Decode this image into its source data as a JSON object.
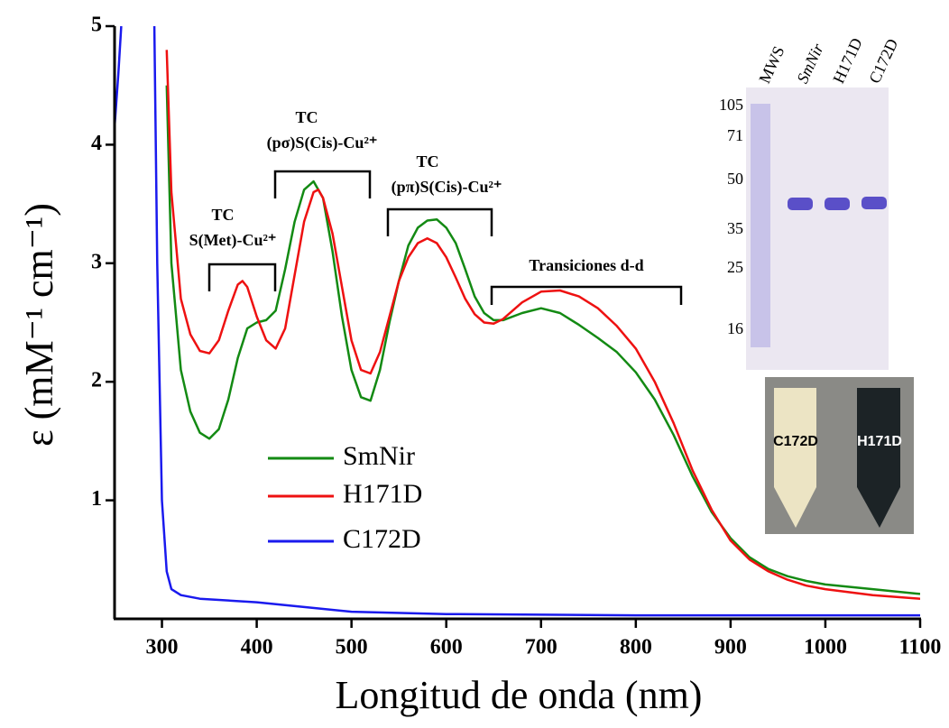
{
  "chart_data": {
    "type": "line",
    "xlabel": "Longitud de onda (nm)",
    "ylabel": "ε (mM⁻¹ cm⁻¹)",
    "xlim": [
      250,
      1100
    ],
    "ylim": [
      0,
      5
    ],
    "xticks": [
      300,
      400,
      500,
      600,
      700,
      800,
      900,
      1000,
      1100
    ],
    "yticks": [
      1,
      2,
      3,
      4,
      5
    ],
    "series": [
      {
        "name": "SmNir",
        "color": "#138a13",
        "x": [
          305,
          310,
          320,
          330,
          340,
          350,
          360,
          370,
          380,
          390,
          400,
          410,
          420,
          430,
          440,
          450,
          460,
          470,
          480,
          490,
          500,
          510,
          520,
          530,
          540,
          550,
          560,
          570,
          580,
          590,
          600,
          610,
          620,
          630,
          640,
          650,
          660,
          680,
          700,
          720,
          740,
          760,
          780,
          800,
          820,
          840,
          860,
          880,
          900,
          920,
          940,
          960,
          980,
          1000,
          1050,
          1100
        ],
        "values": [
          4.5,
          3.0,
          2.1,
          1.75,
          1.57,
          1.52,
          1.6,
          1.85,
          2.2,
          2.45,
          2.5,
          2.52,
          2.6,
          2.95,
          3.35,
          3.62,
          3.69,
          3.55,
          3.1,
          2.55,
          2.1,
          1.87,
          1.84,
          2.1,
          2.5,
          2.85,
          3.15,
          3.3,
          3.36,
          3.37,
          3.3,
          3.17,
          2.95,
          2.72,
          2.58,
          2.52,
          2.52,
          2.58,
          2.62,
          2.58,
          2.48,
          2.37,
          2.25,
          2.08,
          1.85,
          1.55,
          1.2,
          0.9,
          0.68,
          0.52,
          0.42,
          0.36,
          0.32,
          0.29,
          0.25,
          0.21
        ]
      },
      {
        "name": "H171D",
        "color": "#ee1111",
        "x": [
          305,
          310,
          320,
          330,
          340,
          350,
          360,
          370,
          380,
          385,
          390,
          400,
          410,
          420,
          430,
          440,
          450,
          460,
          465,
          470,
          480,
          490,
          500,
          510,
          520,
          530,
          540,
          550,
          560,
          570,
          580,
          590,
          600,
          610,
          620,
          630,
          640,
          650,
          660,
          680,
          700,
          720,
          740,
          760,
          780,
          800,
          820,
          840,
          860,
          880,
          900,
          920,
          940,
          960,
          980,
          1000,
          1050,
          1100
        ],
        "values": [
          4.8,
          3.6,
          2.7,
          2.4,
          2.26,
          2.24,
          2.35,
          2.6,
          2.82,
          2.85,
          2.8,
          2.55,
          2.35,
          2.28,
          2.45,
          2.9,
          3.35,
          3.6,
          3.62,
          3.55,
          3.25,
          2.8,
          2.35,
          2.1,
          2.07,
          2.25,
          2.55,
          2.85,
          3.05,
          3.17,
          3.21,
          3.17,
          3.05,
          2.88,
          2.7,
          2.57,
          2.5,
          2.49,
          2.53,
          2.67,
          2.76,
          2.77,
          2.72,
          2.62,
          2.47,
          2.28,
          2.0,
          1.65,
          1.25,
          0.92,
          0.66,
          0.5,
          0.4,
          0.33,
          0.28,
          0.25,
          0.2,
          0.17
        ]
      },
      {
        "name": "C172D",
        "color": "#1a1aee",
        "x": [
          250,
          254,
          257,
          275,
          292,
          295,
          300,
          305,
          310,
          320,
          340,
          400,
          450,
          500,
          600,
          800,
          1100
        ],
        "values": [
          4.15,
          4.6,
          5.0,
          null,
          5.0,
          3.0,
          1.0,
          0.4,
          0.25,
          0.2,
          0.17,
          0.14,
          0.1,
          0.06,
          0.04,
          0.03,
          0.03
        ]
      }
    ],
    "annotations": [
      "TC",
      "S(Met)-Cu²⁺",
      "TC",
      "(pσ)S(Cis)-Cu²⁺",
      "TC",
      "(pπ)S(Cis)-Cu²⁺",
      "Transiciones d-d"
    ],
    "inset": {
      "lanes": [
        "MWS",
        "SmNir",
        "H171D",
        "C172D"
      ],
      "markers": [
        "105",
        "71",
        "50",
        "35",
        "25",
        "16"
      ],
      "tubes": [
        "C172D",
        "H171D"
      ]
    }
  }
}
